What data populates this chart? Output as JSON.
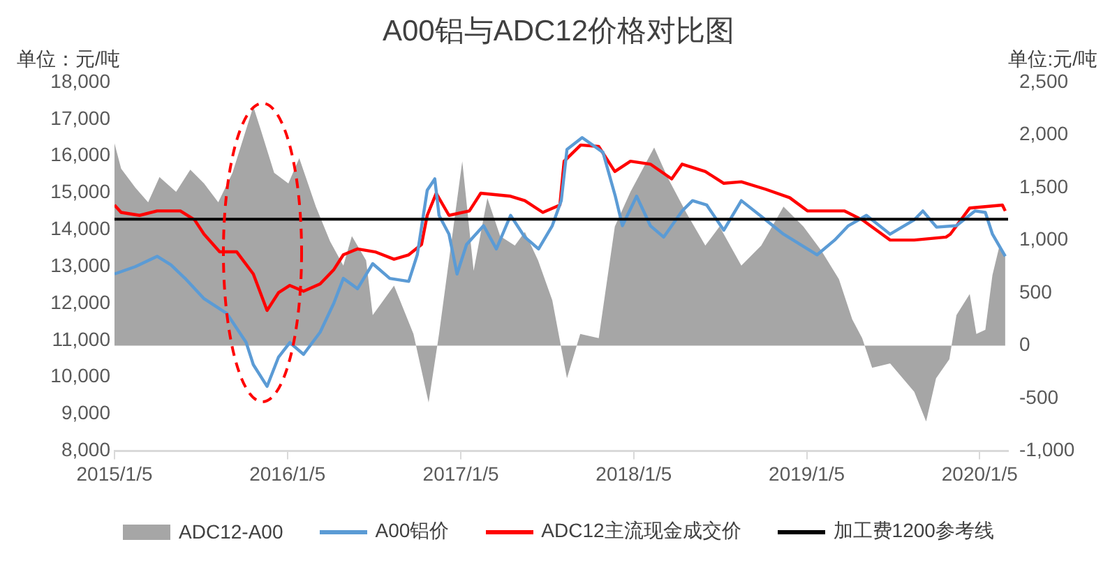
{
  "chart_data": {
    "type": "line",
    "title": "A00铝与ADC12价格对比图",
    "ylabel": "单位：元/吨",
    "y2label": "单位:元/吨",
    "xlim": [
      "2015-01-05",
      "2020-03-05"
    ],
    "xticks": [
      {
        "value": "2015-01-05",
        "label": "2015/1/5"
      },
      {
        "value": "2016-01-05",
        "label": "2016/1/5"
      },
      {
        "value": "2017-01-05",
        "label": "2017/1/5"
      },
      {
        "value": "2018-01-05",
        "label": "2018/1/5"
      },
      {
        "value": "2019-01-05",
        "label": "2019/1/5"
      },
      {
        "value": "2020-01-05",
        "label": "2020/1/5"
      }
    ],
    "ylim": [
      8000,
      18000
    ],
    "yticks": [
      {
        "value": 8000,
        "label": "8,000"
      },
      {
        "value": 9000,
        "label": "9,000"
      },
      {
        "value": 10000,
        "label": "10,000"
      },
      {
        "value": 11000,
        "label": "11,000"
      },
      {
        "value": 12000,
        "label": "12,000"
      },
      {
        "value": 13000,
        "label": "13,000"
      },
      {
        "value": 14000,
        "label": "14,000"
      },
      {
        "value": 15000,
        "label": "15,000"
      },
      {
        "value": 16000,
        "label": "16,000"
      },
      {
        "value": 17000,
        "label": "17,000"
      },
      {
        "value": 18000,
        "label": "18,000"
      }
    ],
    "y2lim": [
      -1000,
      2500
    ],
    "y2ticks": [
      {
        "value": -1000,
        "label": "-1,000"
      },
      -500,
      0,
      500,
      {
        "value": 1000,
        "label": "1,000"
      },
      {
        "value": 1500,
        "label": "1,500"
      },
      {
        "value": 2000,
        "label": "2,000"
      },
      {
        "value": 2500,
        "label": "2,500"
      }
    ],
    "series": [
      {
        "name": "ADC12-A00",
        "type": "area",
        "axis": "y2",
        "color": "#a6a6a6",
        "x": [
          "2015-01-05",
          "2015-01-19",
          "2015-02-18",
          "2015-03-17",
          "2015-04-10",
          "2015-05-15",
          "2015-06-14",
          "2015-07-13",
          "2015-08-12",
          "2015-09-11",
          "2015-10-25",
          "2015-11-09",
          "2015-12-08",
          "2016-01-07",
          "2016-01-30",
          "2016-03-05",
          "2016-04-04",
          "2016-05-02",
          "2016-05-20",
          "2016-06-19",
          "2016-07-03",
          "2016-08-17",
          "2016-09-27",
          "2016-10-29",
          "2016-11-20",
          "2017-01-08",
          "2017-02-01",
          "2017-03-02",
          "2017-03-29",
          "2017-04-29",
          "2017-05-20",
          "2017-06-17",
          "2017-07-17",
          "2017-08-17",
          "2017-09-14",
          "2017-10-23",
          "2017-11-26",
          "2017-12-29",
          "2018-02-17",
          "2018-03-17",
          "2018-04-26",
          "2018-06-05",
          "2018-07-05",
          "2018-08-20",
          "2018-10-01",
          "2018-11-17",
          "2018-12-29",
          "2019-02-05",
          "2019-03-14",
          "2019-04-11",
          "2019-05-02",
          "2019-05-23",
          "2019-06-30",
          "2019-08-20",
          "2019-09-14",
          "2019-10-05",
          "2019-11-02",
          "2019-11-17",
          "2019-12-15",
          "2019-12-29",
          "2020-01-17",
          "2020-02-01",
          "2020-02-16",
          "2020-02-28"
        ],
        "values": [
          1920,
          1680,
          1500,
          1360,
          1600,
          1460,
          1670,
          1540,
          1360,
          1640,
          2270,
          2060,
          1640,
          1540,
          1780,
          1320,
          990,
          760,
          1040,
          810,
          290,
          570,
          110,
          -540,
          110,
          1750,
          710,
          1400,
          1040,
          950,
          1080,
          810,
          430,
          -310,
          110,
          70,
          1130,
          1460,
          1880,
          1600,
          1260,
          950,
          1130,
          760,
          950,
          1320,
          1130,
          900,
          630,
          250,
          70,
          -210,
          -170,
          -440,
          -720,
          -310,
          -130,
          290,
          490,
          110,
          150,
          670,
          950,
          850
        ]
      },
      {
        "name": "A00铝价",
        "type": "line",
        "color": "#5b9bd5",
        "x": [
          "2015-01-05",
          "2015-02-18",
          "2015-04-05",
          "2015-05-04",
          "2015-06-03",
          "2015-07-13",
          "2015-08-30",
          "2015-10-10",
          "2015-10-25",
          "2015-11-23",
          "2015-12-17",
          "2016-01-10",
          "2016-02-08",
          "2016-03-14",
          "2016-04-12",
          "2016-05-02",
          "2016-06-01",
          "2016-07-03",
          "2016-08-08",
          "2016-09-17",
          "2016-10-05",
          "2016-10-26",
          "2016-11-11",
          "2016-11-20",
          "2016-12-11",
          "2016-12-28",
          "2017-01-17",
          "2017-02-22",
          "2017-03-21",
          "2017-04-20",
          "2017-05-20",
          "2017-06-18",
          "2017-07-17",
          "2017-08-05",
          "2017-08-17",
          "2017-09-18",
          "2017-11-01",
          "2017-11-27",
          "2017-12-12",
          "2018-01-11",
          "2018-02-09",
          "2018-03-09",
          "2018-04-17",
          "2018-05-09",
          "2018-06-08",
          "2018-07-14",
          "2018-08-20",
          "2018-10-10",
          "2018-11-17",
          "2019-01-27",
          "2019-03-05",
          "2019-04-03",
          "2019-05-11",
          "2019-06-30",
          "2019-08-20",
          "2019-09-07",
          "2019-10-06",
          "2019-11-17",
          "2019-12-26",
          "2020-01-17",
          "2020-02-01",
          "2020-02-28"
        ],
        "values": [
          12800,
          13000,
          13280,
          13050,
          12680,
          12130,
          11730,
          10940,
          10340,
          9750,
          10540,
          10940,
          10620,
          11220,
          12010,
          12680,
          12400,
          13080,
          12680,
          12600,
          13320,
          15070,
          15380,
          14390,
          13880,
          12800,
          13600,
          14110,
          13480,
          14390,
          13800,
          13480,
          14110,
          14790,
          16180,
          16500,
          16100,
          14910,
          14110,
          14910,
          14110,
          13800,
          14510,
          14790,
          14670,
          13990,
          14790,
          14270,
          13880,
          13320,
          13720,
          14110,
          14390,
          13880,
          14270,
          14510,
          14070,
          14110,
          14510,
          14470,
          13880,
          13280
        ]
      },
      {
        "name": "ADC12主流现金成交价",
        "type": "line",
        "color": "#ff0000",
        "x": [
          "2015-01-05",
          "2015-01-19",
          "2015-02-27",
          "2015-04-05",
          "2015-05-24",
          "2015-06-23",
          "2015-07-13",
          "2015-08-15",
          "2015-09-20",
          "2015-10-25",
          "2015-11-23",
          "2015-12-17",
          "2016-01-10",
          "2016-02-08",
          "2016-03-14",
          "2016-04-12",
          "2016-05-02",
          "2016-06-01",
          "2016-07-08",
          "2016-08-17",
          "2016-09-17",
          "2016-10-14",
          "2016-10-26",
          "2016-11-14",
          "2016-12-11",
          "2017-01-23",
          "2017-02-16",
          "2017-04-20",
          "2017-05-20",
          "2017-06-27",
          "2017-08-02",
          "2017-08-11",
          "2017-09-15",
          "2017-10-23",
          "2017-11-26",
          "2017-12-29",
          "2018-02-09",
          "2018-03-26",
          "2018-04-17",
          "2018-06-05",
          "2018-07-14",
          "2018-08-20",
          "2018-10-10",
          "2018-11-30",
          "2019-01-07",
          "2019-03-26",
          "2019-05-02",
          "2019-06-30",
          "2019-08-20",
          "2019-10-26",
          "2019-11-04",
          "2019-12-15",
          "2020-02-22",
          "2020-02-28"
        ],
        "values": [
          14670,
          14470,
          14390,
          14510,
          14510,
          14270,
          13880,
          13400,
          13400,
          12800,
          11810,
          12290,
          12490,
          12330,
          12530,
          12920,
          13320,
          13480,
          13400,
          13200,
          13320,
          13600,
          14390,
          14990,
          14390,
          14510,
          14990,
          14910,
          14790,
          14470,
          14670,
          15860,
          16300,
          16260,
          15580,
          15860,
          15780,
          15380,
          15780,
          15580,
          15260,
          15300,
          15100,
          14870,
          14510,
          14510,
          14270,
          13720,
          13720,
          13800,
          13880,
          14590,
          14670,
          14510
        ]
      }
    ],
    "ref_lines": [
      {
        "axis": "y2",
        "value": 1200,
        "label": "加工费1200参考线",
        "color": "#000000"
      }
    ],
    "legend": "bottom",
    "grid": false,
    "marker": "none"
  }
}
